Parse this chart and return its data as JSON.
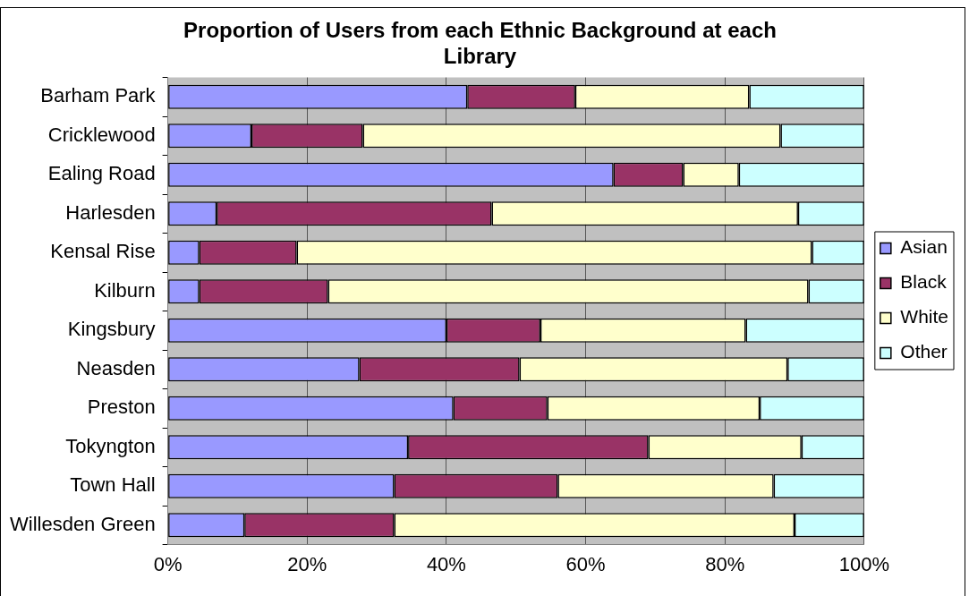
{
  "chart_data": {
    "type": "bar",
    "orientation": "horizontal",
    "stacked": true,
    "title": "Proportion of Users from each Ethnic Background at each Library",
    "categories": [
      "Barham Park",
      "Cricklewood",
      "Ealing Road",
      "Harlesden",
      "Kensal Rise",
      "Kilburn",
      "Kingsbury",
      "Neasden",
      "Preston",
      "Tokyngton",
      "Town Hall",
      "Willesden Green"
    ],
    "series": [
      {
        "name": "Asian",
        "color": "#9999ff",
        "values": [
          43,
          12,
          64,
          7,
          4.5,
          4.5,
          40,
          27.5,
          41,
          34.5,
          32.5,
          11
        ]
      },
      {
        "name": "Black",
        "color": "#993366",
        "values": [
          15.5,
          16,
          10,
          39.5,
          14,
          18.5,
          13.5,
          23,
          13.5,
          34.5,
          23.5,
          21.5
        ]
      },
      {
        "name": "White",
        "color": "#ffffcc",
        "values": [
          25,
          60,
          8,
          44,
          74,
          69,
          29.5,
          38.5,
          30.5,
          22,
          31,
          57.5
        ]
      },
      {
        "name": "Other",
        "color": "#ccffff",
        "values": [
          16.5,
          12,
          18,
          9.5,
          7.5,
          8,
          17,
          11,
          15,
          9,
          13,
          10
        ]
      }
    ],
    "xlim": [
      0,
      100
    ],
    "xticks": [
      {
        "value": 0,
        "label": "0%"
      },
      {
        "value": 20,
        "label": "20%"
      },
      {
        "value": 40,
        "label": "40%"
      },
      {
        "value": 60,
        "label": "60%"
      },
      {
        "value": 80,
        "label": "80%"
      },
      {
        "value": 100,
        "label": "100%"
      }
    ],
    "grid": "x",
    "legend": "right"
  }
}
